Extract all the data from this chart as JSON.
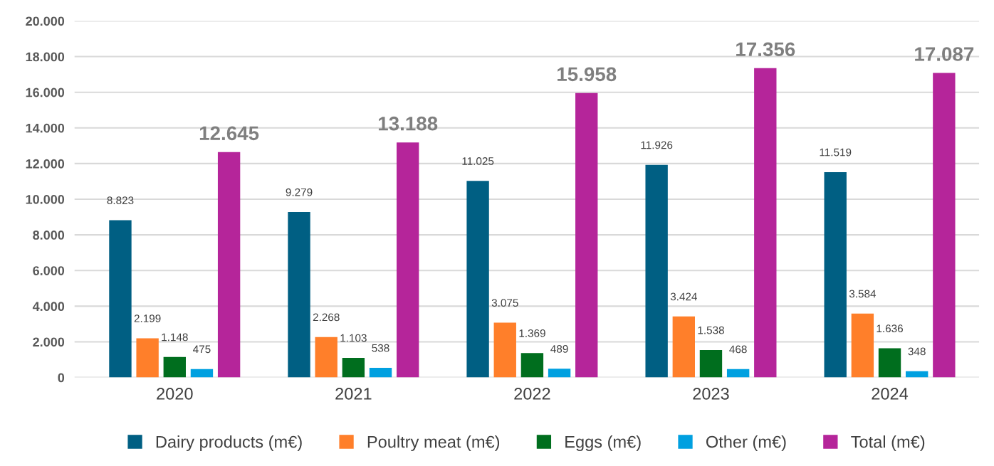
{
  "chart_data": {
    "type": "bar",
    "categories": [
      "2020",
      "2021",
      "2022",
      "2023",
      "2024"
    ],
    "series": [
      {
        "name": "Dairy products (m€)",
        "color": "#005f83",
        "values": [
          8823,
          9279,
          11025,
          11926,
          11519
        ],
        "value_labels": [
          "8.823",
          "9.279",
          "11.025",
          "11.926",
          "11.519"
        ]
      },
      {
        "name": "Poultry meat (m€)",
        "color": "#ff7f2a",
        "values": [
          2199,
          2268,
          3075,
          3424,
          3584
        ],
        "value_labels": [
          "2.199",
          "2.268",
          "3.075",
          "3.424",
          "3.584"
        ]
      },
      {
        "name": "Eggs (m€)",
        "color": "#006e1e",
        "values": [
          1148,
          1103,
          1369,
          1538,
          1636
        ],
        "value_labels": [
          "1.148",
          "1.103",
          "1.369",
          "1.538",
          "1.636"
        ]
      },
      {
        "name": "Other (m€)",
        "color": "#00a0e0",
        "values": [
          475,
          538,
          489,
          468,
          348
        ],
        "value_labels": [
          "475",
          "538",
          "489",
          "468",
          "348"
        ]
      },
      {
        "name": "Total (m€)",
        "color": "#b5259a",
        "values": [
          12645,
          13188,
          15958,
          17356,
          17087
        ],
        "value_labels": [
          "12.645",
          "13.188",
          "15.958",
          "17.356",
          "17.087"
        ]
      }
    ],
    "ylim": [
      0,
      20000
    ],
    "yticks": [
      {
        "value": 0,
        "label": "0"
      },
      {
        "value": 2000,
        "label": "2.000"
      },
      {
        "value": 4000,
        "label": "4.000"
      },
      {
        "value": 6000,
        "label": "6.000"
      },
      {
        "value": 8000,
        "label": "8.000"
      },
      {
        "value": 10000,
        "label": "10.000"
      },
      {
        "value": 12000,
        "label": "12.000"
      },
      {
        "value": 14000,
        "label": "14.000"
      },
      {
        "value": 16000,
        "label": "16.000"
      },
      {
        "value": 18000,
        "label": "18.000"
      },
      {
        "value": 20000,
        "label": "20.000"
      }
    ],
    "grid": "y",
    "legend": "bottom"
  }
}
